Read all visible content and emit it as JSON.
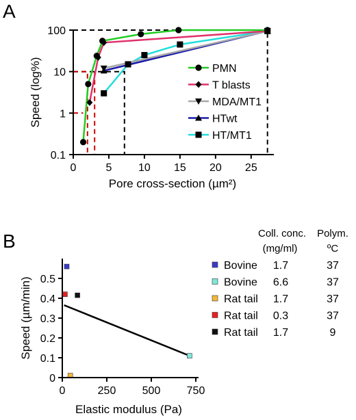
{
  "chart_data": [
    {
      "panel_label": "A",
      "type": "line",
      "y_scale": "log",
      "xlabel": "Pore cross-section (µm²)",
      "ylabel": "Speed (log%)",
      "xlim": [
        0,
        28
      ],
      "ylim": [
        0.1,
        100
      ],
      "x_ticks": [
        "0",
        "5",
        "10",
        "15",
        "20",
        "25"
      ],
      "y_ticks": [
        "0.1",
        "1",
        "10",
        "100"
      ],
      "legend_position": "right",
      "series": [
        {
          "name": "PMN",
          "marker": "circle",
          "color": "#22cc22",
          "points": [
            [
              1.4,
              0.2
            ],
            [
              2.1,
              5
            ],
            [
              3.3,
              24
            ],
            [
              4.1,
              55
            ],
            [
              9.5,
              80
            ],
            [
              14.8,
              100
            ],
            [
              27.3,
              100
            ]
          ]
        },
        {
          "name": "T blasts",
          "marker": "diamond",
          "color": "#e0306a",
          "points": [
            [
              2.3,
              1.8
            ],
            [
              3.5,
              22
            ],
            [
              4.3,
              50
            ],
            [
              27.3,
              95
            ]
          ]
        },
        {
          "name": "MDA/MT1",
          "marker": "triangle-down",
          "color": "#a8a8a8",
          "points": [
            [
              4.3,
              12
            ],
            [
              27.3,
              95
            ]
          ]
        },
        {
          "name": "HTwt",
          "marker": "triangle-up",
          "color": "#1a1aaa",
          "points": [
            [
              4.3,
              10.5
            ],
            [
              27.3,
              95
            ]
          ]
        },
        {
          "name": "HT/MT1",
          "marker": "square",
          "color": "#22dddd",
          "points": [
            [
              4.3,
              3
            ],
            [
              7.7,
              15
            ],
            [
              10.0,
              25
            ],
            [
              15.0,
              45
            ],
            [
              27.3,
              95
            ]
          ]
        }
      ],
      "reference_lines": [
        {
          "color": "#000000",
          "path": [
            [
              0,
              100
            ],
            [
              27.3,
              100
            ],
            [
              27.3,
              0.1
            ]
          ]
        },
        {
          "color": "#000000",
          "path": [
            [
              0,
              10
            ],
            [
              7.2,
              10
            ],
            [
              7.2,
              0.1
            ]
          ]
        },
        {
          "color": "#cc0000",
          "path": [
            [
              0,
              10
            ],
            [
              2.0,
              10
            ],
            [
              2.0,
              0.1
            ]
          ]
        },
        {
          "color": "#cc0000",
          "path": [
            [
              0,
              1
            ],
            [
              1.4,
              1
            ]
          ]
        },
        {
          "color": "#cc0000",
          "path": [
            [
              3.0,
              10
            ],
            [
              3.0,
              0.1
            ]
          ]
        }
      ]
    },
    {
      "panel_label": "B",
      "type": "scatter",
      "xlabel": "Elastic modulus (Pa)",
      "ylabel": "Speed (µm/min)",
      "xlim": [
        0,
        750
      ],
      "ylim": [
        0,
        0.6
      ],
      "x_ticks": [
        "0",
        "250",
        "500",
        "750"
      ],
      "y_ticks": [
        "0",
        "0.1",
        "0.2",
        "0.3",
        "0.4",
        "0.5"
      ],
      "table_headers": {
        "conc_line1": "Coll. conc.",
        "conc_line2": "(mg/ml)",
        "polym_line1": "Polym.",
        "polym_line2": "ºC"
      },
      "points": [
        {
          "name": "Bovine",
          "conc": "1.7",
          "polym": "37",
          "x": 25,
          "y": 0.56,
          "color": "#3b3bc8"
        },
        {
          "name": "Bovine",
          "conc": "6.6",
          "polym": "37",
          "x": 715,
          "y": 0.11,
          "color": "#7fe8d8"
        },
        {
          "name": "Rat tail",
          "conc": "1.7",
          "polym": "37",
          "x": 45,
          "y": 0.01,
          "color": "#f4b838"
        },
        {
          "name": "Rat tail",
          "conc": "0.3",
          "polym": "37",
          "x": 15,
          "y": 0.42,
          "color": "#e82020"
        },
        {
          "name": "Rat tail",
          "conc": "1.7",
          "polym": "9",
          "x": 85,
          "y": 0.415,
          "color": "#111111"
        }
      ],
      "regression_line": [
        [
          10,
          0.365
        ],
        [
          715,
          0.11
        ]
      ]
    }
  ]
}
